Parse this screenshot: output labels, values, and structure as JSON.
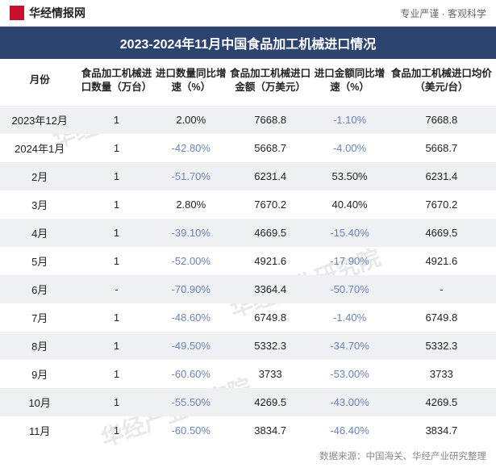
{
  "header": {
    "logo_text": "华经情报网",
    "tagline": "专业严谨 · 客观科学"
  },
  "title": "2023-2024年11月中国食品加工机械进口情况",
  "columns": [
    "月份",
    "食品加工机械进口数量（万台）",
    "进口数量同比增速（%）",
    "食品加工机械进口金额（万美元）",
    "进口金额同比增速（%）",
    "食品加工机械进口均价（美元/台）"
  ],
  "rows": [
    {
      "shaded": true,
      "c": [
        "2023年12月",
        "1",
        "2.00%",
        "7668.8",
        "-1.10%",
        "7668.8"
      ],
      "neg": [
        false,
        false,
        false,
        false,
        true,
        false
      ]
    },
    {
      "shaded": false,
      "c": [
        "2024年1月",
        "1",
        "-42.80%",
        "5668.7",
        "-4.00%",
        "5668.7"
      ],
      "neg": [
        false,
        false,
        true,
        false,
        true,
        false
      ]
    },
    {
      "shaded": true,
      "c": [
        "2月",
        "1",
        "-51.70%",
        "6231.4",
        "53.50%",
        "6231.4"
      ],
      "neg": [
        false,
        false,
        true,
        false,
        false,
        false
      ]
    },
    {
      "shaded": false,
      "c": [
        "3月",
        "1",
        "2.80%",
        "7670.2",
        "40.40%",
        "7670.2"
      ],
      "neg": [
        false,
        false,
        false,
        false,
        false,
        false
      ]
    },
    {
      "shaded": true,
      "c": [
        "4月",
        "1",
        "-39.10%",
        "4669.5",
        "-15.40%",
        "4669.5"
      ],
      "neg": [
        false,
        false,
        true,
        false,
        true,
        false
      ]
    },
    {
      "shaded": false,
      "c": [
        "5月",
        "1",
        "-52.00%",
        "4921.6",
        "-17.90%",
        "4921.6"
      ],
      "neg": [
        false,
        false,
        true,
        false,
        true,
        false
      ]
    },
    {
      "shaded": true,
      "c": [
        "6月",
        "-",
        "-70.90%",
        "3364.4",
        "-50.70%",
        "-"
      ],
      "neg": [
        false,
        false,
        true,
        false,
        true,
        false
      ]
    },
    {
      "shaded": false,
      "c": [
        "7月",
        "1",
        "-48.60%",
        "6749.8",
        "-1.40%",
        "6749.8"
      ],
      "neg": [
        false,
        false,
        true,
        false,
        true,
        false
      ]
    },
    {
      "shaded": true,
      "c": [
        "8月",
        "1",
        "-49.50%",
        "5332.3",
        "-34.70%",
        "5332.3"
      ],
      "neg": [
        false,
        false,
        true,
        false,
        true,
        false
      ]
    },
    {
      "shaded": false,
      "c": [
        "9月",
        "1",
        "-60.60%",
        "3733",
        "-53.00%",
        "3733"
      ],
      "neg": [
        false,
        false,
        true,
        false,
        true,
        false
      ]
    },
    {
      "shaded": true,
      "c": [
        "10月",
        "1",
        "-55.50%",
        "4269.5",
        "-43.00%",
        "4269.5"
      ],
      "neg": [
        false,
        false,
        true,
        false,
        true,
        false
      ]
    },
    {
      "shaded": false,
      "c": [
        "11月",
        "1",
        "-60.50%",
        "3834.7",
        "-46.40%",
        "3834.7"
      ],
      "neg": [
        false,
        false,
        true,
        false,
        true,
        false
      ]
    }
  ],
  "source": "数据来源：中国海关、华经产业研究整理",
  "watermark_text": "华经产业研究院",
  "col_widths": [
    "16%",
    "15%",
    "15%",
    "17%",
    "15%",
    "22%"
  ],
  "colors": {
    "title_bg": "#2d4471",
    "shade_bg": "#eef0f4",
    "neg_text": "#6b84b8",
    "logo_bg": "#c8102e"
  }
}
